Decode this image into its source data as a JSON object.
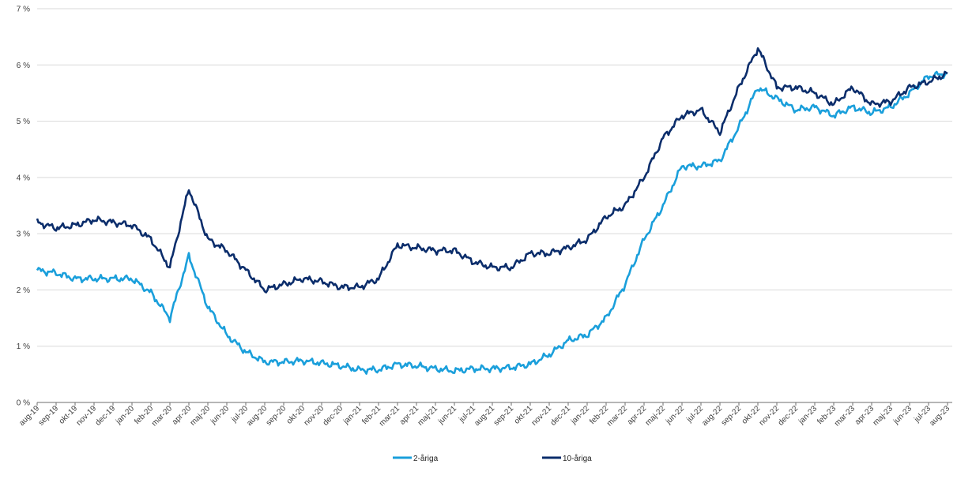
{
  "chart_data": {
    "type": "line",
    "title": "",
    "xlabel": "",
    "ylabel": "",
    "ylim": [
      0,
      7
    ],
    "yticks": [
      "0 %",
      "1 %",
      "2 %",
      "3 %",
      "4 %",
      "5 %",
      "6 %",
      "7 %"
    ],
    "grid": "horizontal",
    "legend": "bottom-center",
    "x": [
      "aug-19",
      "sep-19",
      "okt-19",
      "nov-19",
      "dec-19",
      "jan-20",
      "feb-20",
      "mar-20",
      "apr-20",
      "maj-20",
      "jun-20",
      "jul-20",
      "aug-20",
      "sep-20",
      "okt-20",
      "nov-20",
      "dec-20",
      "jan-21",
      "feb-21",
      "mar-21",
      "apr-21",
      "maj-21",
      "jun-21",
      "jul-21",
      "aug-21",
      "sep-21",
      "okt-21",
      "nov-21",
      "dec-21",
      "jan-22",
      "feb-22",
      "mar-22",
      "apr-22",
      "maj-22",
      "jun-22",
      "jul-22",
      "aug-22",
      "sep-22",
      "okt-22",
      "nov-22",
      "dec-22",
      "jan-23",
      "feb-23",
      "mar-23",
      "apr-23",
      "maj-23",
      "jun-23",
      "jul-23",
      "aug-23"
    ],
    "series": [
      {
        "name": "2-åriga",
        "color": "#1a9fdb",
        "values": [
          2.35,
          2.3,
          2.2,
          2.2,
          2.2,
          2.2,
          1.95,
          1.5,
          2.6,
          1.7,
          1.2,
          0.9,
          0.72,
          0.72,
          0.74,
          0.7,
          0.65,
          0.58,
          0.58,
          0.68,
          0.65,
          0.6,
          0.56,
          0.6,
          0.6,
          0.62,
          0.68,
          0.85,
          1.1,
          1.2,
          1.5,
          2.1,
          2.9,
          3.5,
          4.2,
          4.2,
          4.3,
          4.9,
          5.6,
          5.4,
          5.2,
          5.25,
          5.1,
          5.25,
          5.15,
          5.25,
          5.5,
          5.8,
          5.85
        ]
      },
      {
        "name": "10-åriga",
        "color": "#0b2d6b",
        "values": [
          3.2,
          3.1,
          3.15,
          3.25,
          3.2,
          3.15,
          2.9,
          2.4,
          3.8,
          2.9,
          2.7,
          2.35,
          2.0,
          2.1,
          2.2,
          2.15,
          2.05,
          2.05,
          2.2,
          2.8,
          2.75,
          2.7,
          2.7,
          2.5,
          2.4,
          2.4,
          2.65,
          2.65,
          2.75,
          2.9,
          3.3,
          3.5,
          4.0,
          4.7,
          5.1,
          5.2,
          4.8,
          5.6,
          6.3,
          5.6,
          5.6,
          5.5,
          5.3,
          5.6,
          5.3,
          5.35,
          5.6,
          5.7,
          5.85
        ]
      }
    ]
  },
  "legend": {
    "items": [
      {
        "label": "2-åriga",
        "color": "#1a9fdb"
      },
      {
        "label": "10-åriga",
        "color": "#0b2d6b"
      }
    ]
  }
}
